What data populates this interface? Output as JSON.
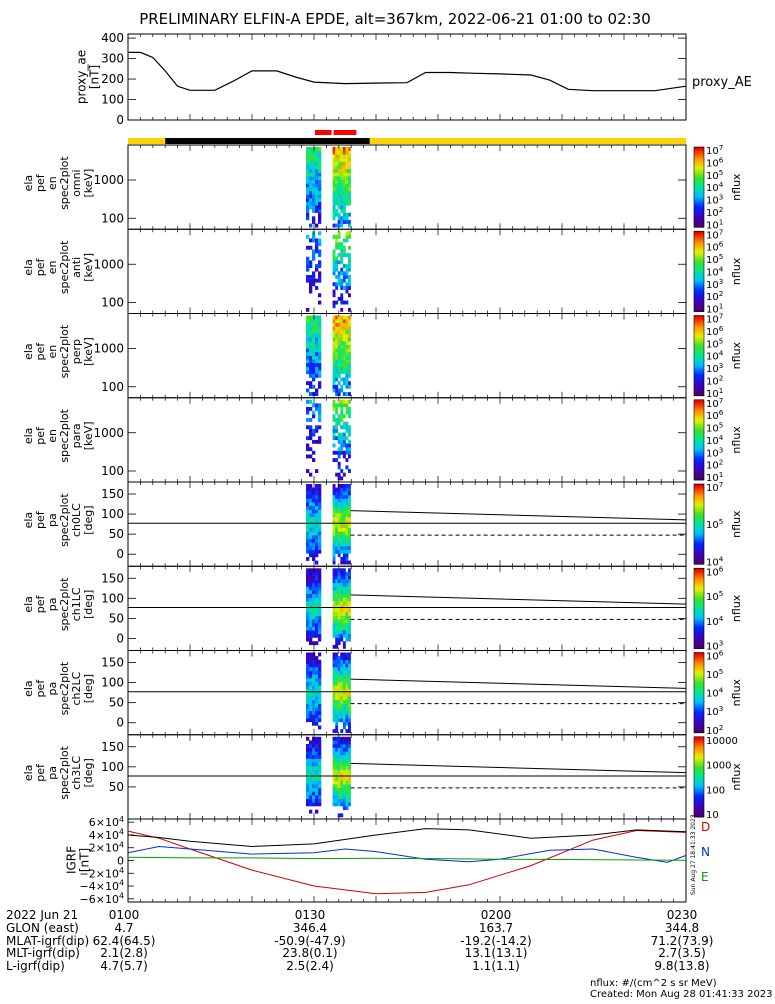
{
  "title": "PRELIMINARY ELFIN-A EPDE, alt=367km, 2022-06-21 01:00 to 02:30",
  "proxy_ae": {
    "ylabel": "proxy_ae\n[nT]",
    "right_label": "proxy_AE",
    "yticks": [
      "400",
      "300",
      "200",
      "100",
      "0"
    ],
    "ylim": [
      0,
      420
    ]
  },
  "status_bar": {
    "segments": [
      {
        "from": "01:00",
        "to": "01:06",
        "color": "#ffd200"
      },
      {
        "from": "01:06",
        "to": "01:39",
        "color": "#000000"
      },
      {
        "from": "01:39",
        "to": "02:30",
        "color": "#ffd200"
      }
    ],
    "science_zones": [
      {
        "from": "01:30",
        "to": "01:33",
        "color": "#ff0000"
      },
      {
        "from": "01:33",
        "to": "01:37",
        "color": "#ff0000"
      }
    ]
  },
  "panels": [
    {
      "label": "ela\npef\nen\nspec2plot\nomni\n[keV]",
      "kind": "energy",
      "yticks": [
        "1000",
        "100"
      ],
      "cbar_ticks": [
        "10^7",
        "10^6",
        "10^5",
        "10^4",
        "10^3",
        "10^2",
        "10^1"
      ],
      "cbar_label": "nflux"
    },
    {
      "label": "ela\npef\nen\nspec2plot\nanti\n[keV]",
      "kind": "energy",
      "yticks": [
        "1000",
        "100"
      ],
      "cbar_ticks": [
        "10^7",
        "10^6",
        "10^5",
        "10^4",
        "10^3",
        "10^2",
        "10^1"
      ],
      "cbar_label": "nflux"
    },
    {
      "label": "ela\npef\nen\nspec2plot\nperp\n[keV]",
      "kind": "energy",
      "yticks": [
        "1000",
        "100"
      ],
      "cbar_ticks": [
        "10^7",
        "10^6",
        "10^5",
        "10^4",
        "10^3",
        "10^2",
        "10^1"
      ],
      "cbar_label": "nflux"
    },
    {
      "label": "ela\npef\nen\nspec2plot\npara\n[keV]",
      "kind": "energy",
      "yticks": [
        "1000",
        "100"
      ],
      "cbar_ticks": [
        "10^7",
        "10^6",
        "10^5",
        "10^4",
        "10^3",
        "10^2",
        "10^1"
      ],
      "cbar_label": "nflux"
    },
    {
      "label": "ela\npef\npa\nspec2plot\nch0LC\n[deg]",
      "kind": "pa",
      "yticks": [
        "150",
        "100",
        "50",
        "0"
      ],
      "cbar_ticks": [
        "10^7",
        "10^5",
        "10^4"
      ],
      "cbar_label": "nflux"
    },
    {
      "label": "ela\npef\npa\nspec2plot\nch1LC\n[deg]",
      "kind": "pa",
      "yticks": [
        "150",
        "100",
        "50",
        "0"
      ],
      "cbar_ticks": [
        "10^6",
        "10^5",
        "10^4",
        "10^3"
      ],
      "cbar_label": "nflux"
    },
    {
      "label": "ela\npef\npa\nspec2plot\nch2LC\n[deg]",
      "kind": "pa",
      "yticks": [
        "150",
        "100",
        "50",
        "0"
      ],
      "cbar_ticks": [
        "10^6",
        "10^5",
        "10^4",
        "10^3",
        "10^2"
      ],
      "cbar_label": "nflux"
    },
    {
      "label": "ela\npef\npa\nspec2plot\nch3LC\n[deg]",
      "kind": "pa",
      "yticks": [
        "150",
        "100",
        "50"
      ],
      "cbar_ticks": [
        "10000",
        "1000",
        "100",
        "10"
      ],
      "cbar_label": "nflux"
    }
  ],
  "igrf": {
    "ylabel": "IGRF\n[nT]",
    "yticks": [
      "6×10^4",
      "4×10^4",
      "2×10^4",
      "0",
      "−2×10^4",
      "−4×10^4",
      "−6×10^4"
    ],
    "legend": [
      "D",
      "N",
      "E"
    ],
    "legend_colors": [
      "#d00000",
      "#0030d0",
      "#00a000"
    ],
    "side_text": "Sun Aug 27 18:41:33 2023"
  },
  "footer": {
    "row_labels": [
      "2022 Jun 21",
      "GLON (east)",
      "MLAT-igrf(dip)",
      "MLT-igrf(dip)",
      "L-igrf(dip)"
    ],
    "time_ticks": [
      "0100",
      "0130",
      "0200",
      "0230"
    ],
    "columns": [
      [
        "4.7",
        "62.4(64.5)",
        "2.1(2.8)",
        "4.7(5.7)"
      ],
      [
        "346.4",
        "-50.9(-47.9)",
        "23.8(0.1)",
        "2.5(2.4)"
      ],
      [
        "163.7",
        "-19.2(-14.2)",
        "13.1(13.1)",
        "1.1(1.1)"
      ],
      [
        "344.8",
        "71.2(73.9)",
        "2.7(3.5)",
        "9.8(13.8)"
      ]
    ],
    "units_note": "nflux: #/(cm^2 s sr MeV)",
    "created": "Created: Mon Aug 28 01:41:33 2023"
  },
  "chart_data": {
    "type": "line",
    "x_range": [
      "01:00",
      "02:30"
    ],
    "proxy_ae": {
      "x": [
        "01:00",
        "01:02",
        "01:04",
        "01:06",
        "01:08",
        "01:10",
        "01:14",
        "01:17",
        "01:20",
        "01:24",
        "01:27",
        "01:30",
        "01:35",
        "01:40",
        "01:45",
        "01:48",
        "01:52",
        "01:56",
        "02:00",
        "02:05",
        "02:08",
        "02:11",
        "02:15",
        "02:20",
        "02:25",
        "02:30"
      ],
      "y": [
        330,
        330,
        305,
        240,
        165,
        145,
        145,
        190,
        240,
        240,
        210,
        185,
        178,
        180,
        182,
        232,
        232,
        228,
        225,
        220,
        195,
        150,
        143,
        143,
        143,
        165
      ]
    },
    "igrf": {
      "series": [
        {
          "name": "D",
          "color": "#d00000",
          "x": [
            "01:00",
            "01:05",
            "01:10",
            "01:20",
            "01:30",
            "01:40",
            "01:48",
            "01:55",
            "02:05",
            "02:15",
            "02:22",
            "02:30"
          ],
          "y": [
            46000,
            35000,
            18000,
            -15000,
            -40000,
            -52000,
            -50000,
            -38000,
            -8000,
            32000,
            47000,
            44000
          ]
        },
        {
          "name": "N",
          "color": "#0030d0",
          "x": [
            "01:00",
            "01:05",
            "01:10",
            "01:20",
            "01:30",
            "01:35",
            "01:40",
            "01:48",
            "01:55",
            "02:00",
            "02:08",
            "02:15",
            "02:22",
            "02:27",
            "02:30"
          ],
          "y": [
            12000,
            22000,
            18000,
            10000,
            12000,
            18000,
            14000,
            2000,
            -2000,
            2000,
            16000,
            18000,
            5000,
            -3000,
            8000
          ]
        },
        {
          "name": "E",
          "color": "#00a000",
          "x": [
            "01:00",
            "01:10",
            "01:20",
            "01:30",
            "01:40",
            "01:50",
            "02:00",
            "02:10",
            "02:20",
            "02:30"
          ],
          "y": [
            5000,
            4000,
            4000,
            3000,
            3500,
            3000,
            2000,
            1500,
            1000,
            500
          ]
        },
        {
          "name": "",
          "color": "#000000",
          "x": [
            "01:00",
            "01:05",
            "01:10",
            "01:20",
            "01:30",
            "01:40",
            "01:48",
            "01:55",
            "02:05",
            "02:15",
            "02:22",
            "02:30"
          ],
          "y": [
            40000,
            36000,
            30000,
            22000,
            26000,
            40000,
            50000,
            48000,
            35000,
            40000,
            48000,
            45000
          ]
        }
      ]
    }
  }
}
